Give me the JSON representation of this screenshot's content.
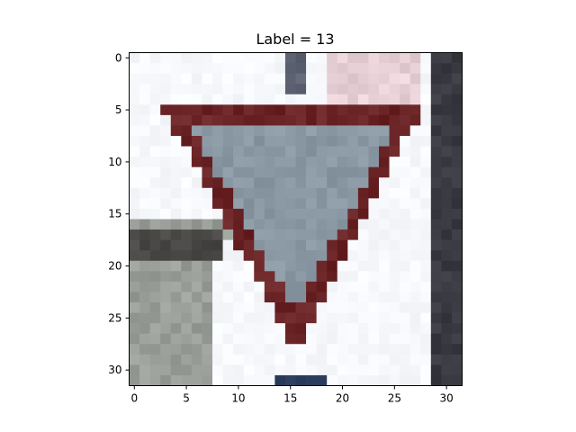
{
  "figure": {
    "title": "Label = 13",
    "x_ticks": [
      "0",
      "5",
      "10",
      "15",
      "20",
      "25",
      "30"
    ],
    "y_ticks": [
      "0",
      "5",
      "10",
      "15",
      "20",
      "25",
      "30"
    ]
  },
  "image": {
    "description_subject": "yield-sign",
    "grid_size": 32,
    "colors": {
      "sky": "#f6f8fb",
      "sign_border": "#6a2426",
      "sign_fill": "#8a98a4",
      "building_dark": "#3a3b42",
      "building_gray": "#9a9e98",
      "wall_dark": "#4a4846",
      "pole": "#5a6070",
      "bottom_dark": "#2a3a5a"
    }
  }
}
